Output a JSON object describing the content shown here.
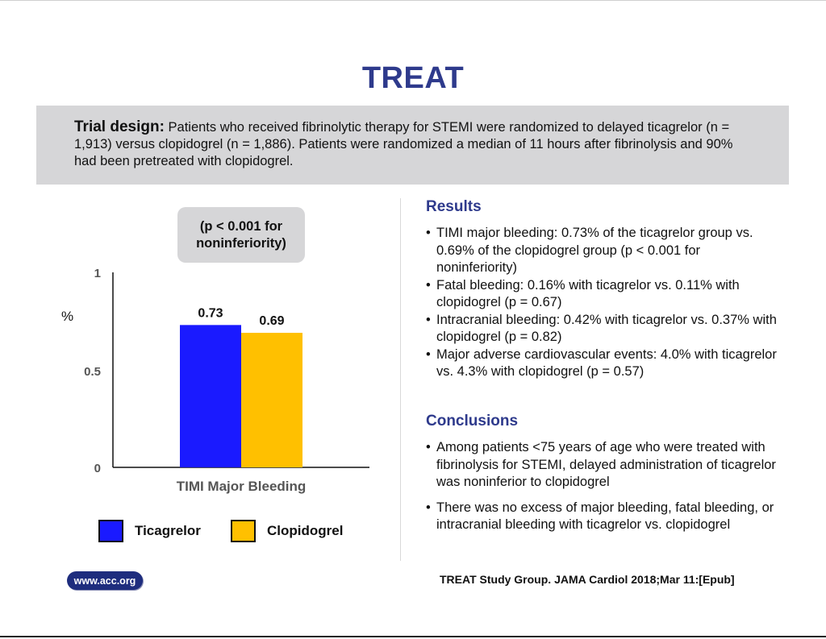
{
  "title": "TREAT",
  "trial_design": {
    "label": "Trial design:",
    "text": " Patients who received fibrinolytic therapy for STEMI were randomized to delayed ticagrelor (n = 1,913) versus clopidogrel (n = 1,886). Patients were randomized a median of 11 hours after fibrinolysis and 90% had been pretreated with clopidogrel."
  },
  "chart_data": {
    "type": "bar",
    "categories": [
      "TIMI Major Bleeding"
    ],
    "series": [
      {
        "name": "Ticagrelor",
        "values": [
          0.73
        ],
        "color": "#1a1aff"
      },
      {
        "name": "Clopidogrel",
        "values": [
          0.69
        ],
        "color": "#ffc000"
      }
    ],
    "data_labels": [
      "0.73",
      "0.69"
    ],
    "ylabel": "%",
    "xlabel": "TIMI Major Bleeding",
    "ylim": [
      0,
      1
    ],
    "yticks": [
      "0",
      "0.5",
      "1"
    ],
    "ytick_values": [
      0,
      0.5,
      1
    ],
    "annotation_lines": [
      "(p < 0.001 for",
      "noninferiority)"
    ],
    "legend_position": "bottom",
    "grid": false
  },
  "results": {
    "heading": "Results",
    "items": [
      "TIMI major bleeding: 0.73% of the ticagrelor group vs. 0.69% of the clopidogrel group (p < 0.001 for noninferiority)",
      "Fatal bleeding: 0.16% with ticagrelor vs. 0.11% with clopidogrel (p = 0.67)",
      "Intracranial bleeding: 0.42% with ticagrelor vs. 0.37% with clopidogrel (p = 0.82)",
      "Major adverse cardiovascular events: 4.0% with ticagrelor vs. 4.3% with clopidogrel (p = 0.57)"
    ]
  },
  "conclusions": {
    "heading": "Conclusions",
    "items": [
      "Among patients <75 years of age who were treated with fibrinolysis for STEMI, delayed administration of ticagrelor was noninferior to clopidogrel",
      "There was no excess of major bleeding, fatal bleeding, or intracranial bleeding with ticagrelor vs. clopidogrel"
    ]
  },
  "logo_text": "www.acc.org",
  "citation": "TREAT Study Group. JAMA Cardiol 2018;Mar 11:[Epub]"
}
